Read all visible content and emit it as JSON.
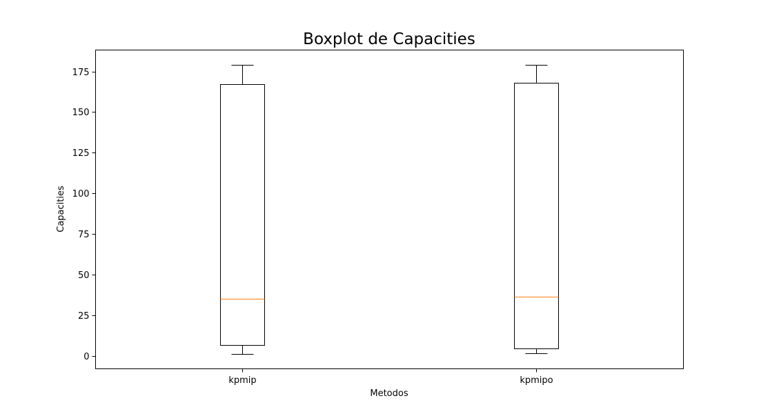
{
  "chart_data": {
    "type": "boxplot",
    "title": "Boxplot de Capacities",
    "xlabel": "Metodos",
    "ylabel": "Capacities",
    "ylim": [
      -8,
      179
    ],
    "yticks": [
      0,
      25,
      50,
      75,
      100,
      125,
      150,
      175
    ],
    "grid": false,
    "categories": [
      "kpmip",
      "kpmipo"
    ],
    "boxes": [
      {
        "label": "kpmip",
        "whisker_low": 1,
        "q1": 6.5,
        "median": 35,
        "q3": 167,
        "whisker_high": 179
      },
      {
        "label": "kpmipo",
        "whisker_low": 1.5,
        "q1": 4.5,
        "median": 36.5,
        "q3": 168,
        "whisker_high": 179
      }
    ],
    "colors": {
      "box": "#000000",
      "median": "#ff7f0e",
      "background": "#ffffff"
    }
  }
}
